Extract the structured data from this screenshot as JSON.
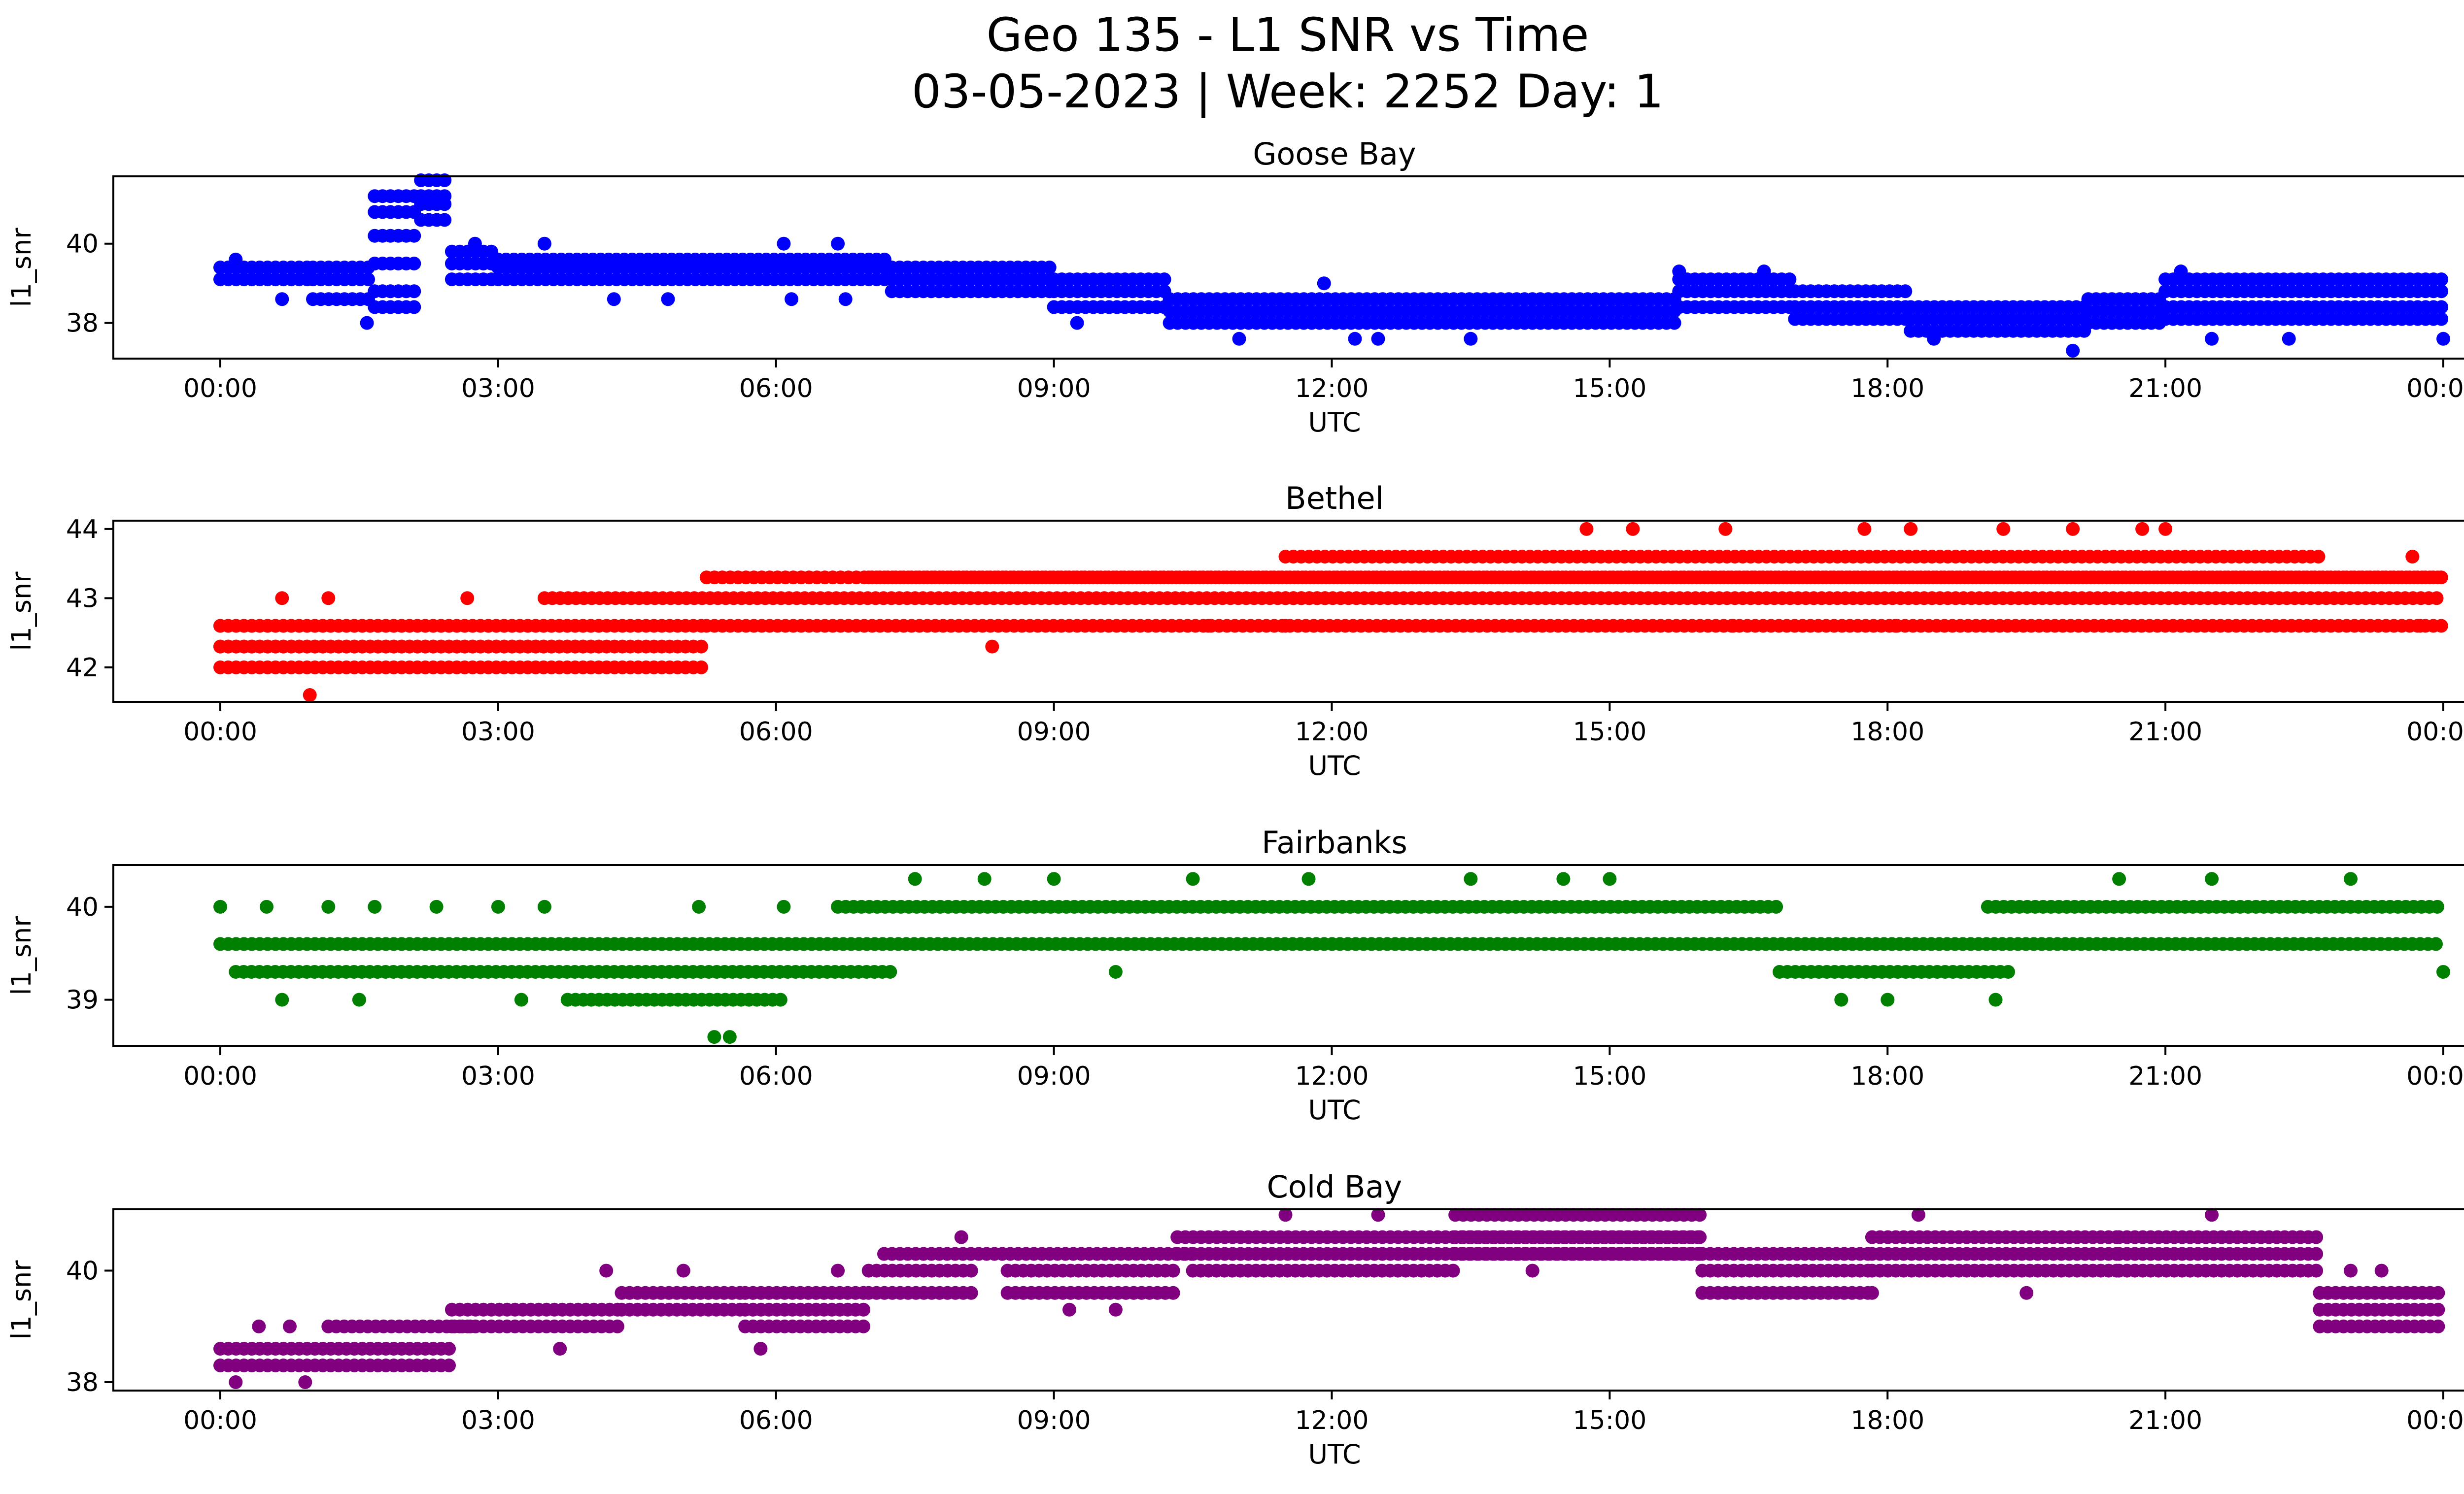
{
  "figure": {
    "title_line1": "Geo 135 - L1 SNR vs Time",
    "title_line2": "03-05-2023 | Week: 2252 Day: 1"
  },
  "chart_data": [
    {
      "type": "scatter",
      "title": "Goose Bay",
      "xlabel": "UTC",
      "ylabel": "l1_snr",
      "color": "#0000ff",
      "xlim_hours": [
        -1.15,
        25.2
      ],
      "ylim": [
        37.1,
        41.7
      ],
      "xticks": [
        "00:00",
        "03:00",
        "06:00",
        "09:00",
        "12:00",
        "15:00",
        "18:00",
        "21:00",
        "00:00"
      ],
      "yticks": [
        38,
        40
      ],
      "grid": false,
      "dense_bands": [
        {
          "x_start": "00:00",
          "x_end": "01:00",
          "y": [
            39.1,
            39.4
          ]
        },
        {
          "x_start": "01:00",
          "x_end": "01:40",
          "y": [
            38.6,
            39.1,
            39.4
          ]
        },
        {
          "x_start": "01:40",
          "x_end": "02:10",
          "y": [
            38.4,
            38.8,
            39.5,
            40.2,
            40.8,
            41.2
          ]
        },
        {
          "x_start": "02:10",
          "x_end": "02:30",
          "y": [
            41.2,
            41.6,
            41.0,
            40.6
          ]
        },
        {
          "x_start": "02:30",
          "x_end": "03:00",
          "y": [
            39.8,
            39.5,
            39.1
          ]
        },
        {
          "x_start": "03:00",
          "x_end": "07:15",
          "y": [
            39.1,
            39.4,
            39.6
          ]
        },
        {
          "x_start": "07:15",
          "x_end": "09:00",
          "y": [
            38.8,
            39.1,
            39.4
          ]
        },
        {
          "x_start": "09:00",
          "x_end": "10:15",
          "y": [
            38.4,
            38.8,
            39.1
          ]
        },
        {
          "x_start": "10:15",
          "x_end": "15:45",
          "y": [
            38.0,
            38.3,
            38.6
          ]
        },
        {
          "x_start": "15:45",
          "x_end": "17:00",
          "y": [
            38.4,
            38.8,
            39.1
          ]
        },
        {
          "x_start": "17:00",
          "x_end": "18:15",
          "y": [
            38.1,
            38.4,
            38.8
          ]
        },
        {
          "x_start": "18:15",
          "x_end": "20:10",
          "y": [
            37.8,
            38.1,
            38.4
          ]
        },
        {
          "x_start": "20:10",
          "x_end": "21:00",
          "y": [
            38.0,
            38.3,
            38.6
          ]
        },
        {
          "x_start": "21:00",
          "x_end": "24:00",
          "y": [
            38.1,
            38.4,
            38.8,
            39.1
          ]
        }
      ],
      "sparse_points": [
        {
          "x": "00:10",
          "y": 39.6
        },
        {
          "x": "00:40",
          "y": 38.6
        },
        {
          "x": "01:35",
          "y": 38.0
        },
        {
          "x": "02:45",
          "y": 40.0
        },
        {
          "x": "03:30",
          "y": 40.0
        },
        {
          "x": "04:15",
          "y": 38.6
        },
        {
          "x": "04:50",
          "y": 38.6
        },
        {
          "x": "06:05",
          "y": 40.0
        },
        {
          "x": "06:10",
          "y": 38.6
        },
        {
          "x": "06:40",
          "y": 40.0
        },
        {
          "x": "06:45",
          "y": 38.6
        },
        {
          "x": "09:15",
          "y": 38.0
        },
        {
          "x": "11:00",
          "y": 37.6
        },
        {
          "x": "11:55",
          "y": 39.0
        },
        {
          "x": "12:15",
          "y": 37.6
        },
        {
          "x": "12:30",
          "y": 37.6
        },
        {
          "x": "13:30",
          "y": 37.6
        },
        {
          "x": "15:45",
          "y": 39.3
        },
        {
          "x": "16:40",
          "y": 39.3
        },
        {
          "x": "18:30",
          "y": 37.6
        },
        {
          "x": "20:00",
          "y": 37.3
        },
        {
          "x": "21:10",
          "y": 39.3
        },
        {
          "x": "21:30",
          "y": 37.6
        },
        {
          "x": "22:20",
          "y": 37.6
        },
        {
          "x": "24:00",
          "y": 37.6
        }
      ]
    },
    {
      "type": "scatter",
      "title": "Bethel",
      "xlabel": "UTC",
      "ylabel": "l1_snr",
      "color": "#ff0000",
      "xlim_hours": [
        -1.15,
        25.2
      ],
      "ylim": [
        41.5,
        44.12
      ],
      "xticks": [
        "00:00",
        "03:00",
        "06:00",
        "09:00",
        "12:00",
        "15:00",
        "18:00",
        "21:00",
        "00:00"
      ],
      "yticks": [
        42,
        43,
        44
      ],
      "grid": false,
      "dense_bands": [
        {
          "x_start": "00:00",
          "x_end": "05:15",
          "y": [
            42.0,
            42.3,
            42.6
          ]
        },
        {
          "x_start": "00:00",
          "x_end": "04:10",
          "y": [
            42.3,
            42.6
          ]
        },
        {
          "x_start": "03:30",
          "x_end": "12:00",
          "y": [
            43.0
          ]
        },
        {
          "x_start": "05:15",
          "x_end": "24:00",
          "y": [
            42.6,
            43.3
          ]
        },
        {
          "x_start": "07:00",
          "x_end": "24:00",
          "y": [
            43.3
          ]
        },
        {
          "x_start": "11:30",
          "x_end": "22:40",
          "y": [
            43.6
          ]
        },
        {
          "x_start": "11:30",
          "x_end": "24:00",
          "y": [
            43.0
          ]
        }
      ],
      "sparse_points": [
        {
          "x": "00:58",
          "y": 41.6
        },
        {
          "x": "00:40",
          "y": 43.0
        },
        {
          "x": "01:10",
          "y": 43.0
        },
        {
          "x": "02:40",
          "y": 43.0
        },
        {
          "x": "04:00",
          "y": 42.0
        },
        {
          "x": "08:20",
          "y": 42.3
        },
        {
          "x": "14:45",
          "y": 44.0
        },
        {
          "x": "15:15",
          "y": 44.0
        },
        {
          "x": "16:15",
          "y": 44.0
        },
        {
          "x": "17:45",
          "y": 44.0
        },
        {
          "x": "18:15",
          "y": 44.0
        },
        {
          "x": "19:15",
          "y": 44.0
        },
        {
          "x": "20:00",
          "y": 44.0
        },
        {
          "x": "20:45",
          "y": 44.0
        },
        {
          "x": "21:00",
          "y": 44.0
        },
        {
          "x": "16:20",
          "y": 42.6
        },
        {
          "x": "18:05",
          "y": 42.6
        },
        {
          "x": "23:45",
          "y": 42.6
        },
        {
          "x": "10:40",
          "y": 42.6
        },
        {
          "x": "11:30",
          "y": 42.6
        },
        {
          "x": "23:40",
          "y": 43.6
        }
      ]
    },
    {
      "type": "scatter",
      "title": "Fairbanks",
      "xlabel": "UTC",
      "ylabel": "l1_snr",
      "color": "#008000",
      "xlim_hours": [
        -1.15,
        25.2
      ],
      "ylim": [
        38.5,
        40.45
      ],
      "xticks": [
        "00:00",
        "03:00",
        "06:00",
        "09:00",
        "12:00",
        "15:00",
        "18:00",
        "21:00",
        "00:00"
      ],
      "yticks": [
        39,
        40
      ],
      "grid": false,
      "dense_bands": [
        {
          "x_start": "00:00",
          "x_end": "24:00",
          "y": [
            39.6
          ]
        },
        {
          "x_start": "00:10",
          "x_end": "07:15",
          "y": [
            39.3
          ]
        },
        {
          "x_start": "06:40",
          "x_end": "16:50",
          "y": [
            40.0
          ]
        },
        {
          "x_start": "03:45",
          "x_end": "06:05",
          "y": [
            39.0
          ]
        },
        {
          "x_start": "16:50",
          "x_end": "19:20",
          "y": [
            39.3
          ]
        },
        {
          "x_start": "19:05",
          "x_end": "24:00",
          "y": [
            40.0
          ]
        }
      ],
      "sparse_points": [
        {
          "x": "00:00",
          "y": 40.0
        },
        {
          "x": "00:30",
          "y": 40.0
        },
        {
          "x": "01:10",
          "y": 40.0
        },
        {
          "x": "01:40",
          "y": 40.0
        },
        {
          "x": "02:20",
          "y": 40.0
        },
        {
          "x": "03:00",
          "y": 40.0
        },
        {
          "x": "03:30",
          "y": 40.0
        },
        {
          "x": "05:10",
          "y": 40.0
        },
        {
          "x": "06:05",
          "y": 40.0
        },
        {
          "x": "00:40",
          "y": 39.0
        },
        {
          "x": "01:30",
          "y": 39.0
        },
        {
          "x": "03:15",
          "y": 39.0
        },
        {
          "x": "05:20",
          "y": 38.6
        },
        {
          "x": "05:30",
          "y": 38.6
        },
        {
          "x": "07:30",
          "y": 40.3
        },
        {
          "x": "08:15",
          "y": 40.3
        },
        {
          "x": "09:00",
          "y": 40.3
        },
        {
          "x": "10:30",
          "y": 40.3
        },
        {
          "x": "11:45",
          "y": 40.3
        },
        {
          "x": "13:30",
          "y": 40.3
        },
        {
          "x": "14:30",
          "y": 40.3
        },
        {
          "x": "15:00",
          "y": 40.3
        },
        {
          "x": "17:30",
          "y": 39.0
        },
        {
          "x": "18:00",
          "y": 39.0
        },
        {
          "x": "19:10",
          "y": 39.0
        },
        {
          "x": "20:30",
          "y": 40.3
        },
        {
          "x": "21:30",
          "y": 40.3
        },
        {
          "x": "23:00",
          "y": 40.3
        },
        {
          "x": "24:00",
          "y": 39.3
        },
        {
          "x": "09:40",
          "y": 39.3
        }
      ]
    },
    {
      "type": "scatter",
      "title": "Cold Bay",
      "xlabel": "UTC",
      "ylabel": "l1_snr",
      "color": "#800080",
      "xlim_hours": [
        -1.15,
        25.2
      ],
      "ylim": [
        37.85,
        41.1
      ],
      "xticks": [
        "00:00",
        "03:00",
        "06:00",
        "09:00",
        "12:00",
        "15:00",
        "18:00",
        "21:00",
        "00:00"
      ],
      "yticks": [
        38,
        40
      ],
      "grid": false,
      "dense_bands": [
        {
          "x_start": "00:00",
          "x_end": "02:30",
          "y": [
            38.3,
            38.6
          ]
        },
        {
          "x_start": "01:10",
          "x_end": "02:45",
          "y": [
            39.0
          ]
        },
        {
          "x_start": "02:30",
          "x_end": "04:20",
          "y": [
            39.0,
            39.3
          ]
        },
        {
          "x_start": "04:20",
          "x_end": "05:40",
          "y": [
            39.3,
            39.6
          ]
        },
        {
          "x_start": "05:40",
          "x_end": "07:00",
          "y": [
            39.0,
            39.3,
            39.6
          ]
        },
        {
          "x_start": "07:00",
          "x_end": "08:10",
          "y": [
            39.6,
            40.0
          ]
        },
        {
          "x_start": "07:10",
          "x_end": "10:30",
          "y": [
            40.3
          ]
        },
        {
          "x_start": "08:30",
          "x_end": "10:20",
          "y": [
            39.6,
            40.0
          ]
        },
        {
          "x_start": "10:20",
          "x_end": "16:00",
          "y": [
            40.3,
            40.6
          ]
        },
        {
          "x_start": "10:30",
          "x_end": "13:20",
          "y": [
            40.0
          ]
        },
        {
          "x_start": "13:20",
          "x_end": "16:00",
          "y": [
            40.3,
            40.6,
            41.0
          ]
        },
        {
          "x_start": "16:00",
          "x_end": "17:50",
          "y": [
            39.6,
            40.0,
            40.3
          ]
        },
        {
          "x_start": "17:50",
          "x_end": "20:30",
          "y": [
            40.0,
            40.3,
            40.6
          ]
        },
        {
          "x_start": "20:30",
          "x_end": "22:40",
          "y": [
            40.0,
            40.3,
            40.6
          ]
        },
        {
          "x_start": "22:40",
          "x_end": "24:00",
          "y": [
            39.0,
            39.3,
            39.6
          ]
        }
      ],
      "sparse_points": [
        {
          "x": "00:10",
          "y": 38.0
        },
        {
          "x": "00:25",
          "y": 39.0
        },
        {
          "x": "00:45",
          "y": 39.0
        },
        {
          "x": "00:55",
          "y": 38.0
        },
        {
          "x": "03:40",
          "y": 38.6
        },
        {
          "x": "04:10",
          "y": 40.0
        },
        {
          "x": "05:00",
          "y": 40.0
        },
        {
          "x": "05:50",
          "y": 38.6
        },
        {
          "x": "06:40",
          "y": 40.0
        },
        {
          "x": "08:00",
          "y": 40.6
        },
        {
          "x": "09:10",
          "y": 39.3
        },
        {
          "x": "09:40",
          "y": 39.3
        },
        {
          "x": "11:30",
          "y": 41.0
        },
        {
          "x": "12:30",
          "y": 41.0
        },
        {
          "x": "14:10",
          "y": 40.0
        },
        {
          "x": "17:50",
          "y": 39.6
        },
        {
          "x": "18:20",
          "y": 41.0
        },
        {
          "x": "19:30",
          "y": 39.6
        },
        {
          "x": "21:30",
          "y": 41.0
        },
        {
          "x": "23:00",
          "y": 40.0
        },
        {
          "x": "23:20",
          "y": 40.0
        }
      ]
    }
  ]
}
